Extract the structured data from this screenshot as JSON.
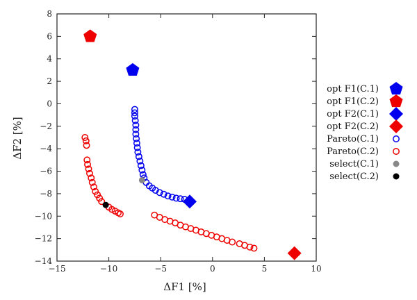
{
  "chart_data": {
    "type": "scatter",
    "xlabel": "ΔF1 [%]",
    "ylabel": "ΔF2 [%]",
    "xlim": [
      -15,
      10
    ],
    "ylim": [
      -14,
      8
    ],
    "x_ticks": [
      -15,
      -10,
      -5,
      0,
      5,
      10
    ],
    "y_ticks": [
      -14,
      -12,
      -10,
      -8,
      -6,
      -4,
      -2,
      0,
      2,
      4,
      6,
      8
    ],
    "grid": false,
    "legend_position": "right",
    "series": [
      {
        "name": "opt F1(C.1)",
        "marker": "pentagon",
        "color": "#0000ee",
        "points": [
          [
            -7.7,
            3.0
          ]
        ]
      },
      {
        "name": "opt F1(C.2)",
        "marker": "pentagon",
        "color": "#ee0000",
        "points": [
          [
            -11.8,
            6.0
          ]
        ]
      },
      {
        "name": "opt F2(C.1)",
        "marker": "diamond",
        "color": "#0000ee",
        "points": [
          [
            -2.2,
            -8.7
          ]
        ]
      },
      {
        "name": "opt F2(C.2)",
        "marker": "diamond",
        "color": "#ee0000",
        "points": [
          [
            7.9,
            -13.3
          ]
        ]
      },
      {
        "name": "Pareto(C.1)",
        "marker": "open-circle",
        "color": "#0000ee",
        "points": [
          [
            -7.5,
            -0.5
          ],
          [
            -7.5,
            -0.8
          ],
          [
            -7.5,
            -1.1
          ],
          [
            -7.45,
            -1.5
          ],
          [
            -7.4,
            -1.9
          ],
          [
            -7.4,
            -2.3
          ],
          [
            -7.4,
            -2.7
          ],
          [
            -7.35,
            -3.1
          ],
          [
            -7.3,
            -3.5
          ],
          [
            -7.25,
            -3.9
          ],
          [
            -7.2,
            -4.3
          ],
          [
            -7.1,
            -4.7
          ],
          [
            -7.0,
            -5.1
          ],
          [
            -6.9,
            -5.5
          ],
          [
            -6.8,
            -5.9
          ],
          [
            -6.7,
            -6.3
          ],
          [
            -6.6,
            -6.6
          ],
          [
            -6.4,
            -7.0
          ],
          [
            -6.1,
            -7.3
          ],
          [
            -5.8,
            -7.5
          ],
          [
            -5.5,
            -7.7
          ],
          [
            -5.1,
            -7.9
          ],
          [
            -4.7,
            -8.05
          ],
          [
            -4.3,
            -8.2
          ],
          [
            -3.9,
            -8.3
          ],
          [
            -3.5,
            -8.4
          ],
          [
            -3.1,
            -8.45
          ],
          [
            -2.7,
            -8.5
          ]
        ]
      },
      {
        "name": "Pareto(C.2)",
        "marker": "open-circle",
        "color": "#ee0000",
        "points": [
          [
            -12.3,
            -3.0
          ],
          [
            -12.2,
            -3.3
          ],
          [
            -12.15,
            -3.7
          ],
          [
            -12.1,
            -5.0
          ],
          [
            -12.05,
            -5.4
          ],
          [
            -11.95,
            -5.8
          ],
          [
            -11.85,
            -6.2
          ],
          [
            -11.7,
            -6.6
          ],
          [
            -11.6,
            -7.0
          ],
          [
            -11.45,
            -7.4
          ],
          [
            -11.3,
            -7.8
          ],
          [
            -11.1,
            -8.1
          ],
          [
            -10.9,
            -8.4
          ],
          [
            -10.7,
            -8.7
          ],
          [
            -10.0,
            -9.2
          ],
          [
            -9.7,
            -9.4
          ],
          [
            -9.4,
            -9.55
          ],
          [
            -9.1,
            -9.7
          ],
          [
            -8.9,
            -9.8
          ],
          [
            -5.6,
            -9.9
          ],
          [
            -5.1,
            -10.1
          ],
          [
            -4.6,
            -10.3
          ],
          [
            -4.1,
            -10.45
          ],
          [
            -3.6,
            -10.6
          ],
          [
            -3.1,
            -10.8
          ],
          [
            -2.6,
            -10.95
          ],
          [
            -2.1,
            -11.1
          ],
          [
            -1.6,
            -11.25
          ],
          [
            -1.1,
            -11.4
          ],
          [
            -0.6,
            -11.55
          ],
          [
            -0.1,
            -11.7
          ],
          [
            0.4,
            -11.85
          ],
          [
            0.9,
            -12.0
          ],
          [
            1.4,
            -12.15
          ],
          [
            1.9,
            -12.3
          ],
          [
            2.6,
            -12.45
          ],
          [
            3.1,
            -12.6
          ],
          [
            3.6,
            -12.75
          ],
          [
            4.0,
            -12.85
          ]
        ]
      },
      {
        "name": "select(C.1)",
        "marker": "filled-circle",
        "color": "#888888",
        "points": [
          [
            -6.8,
            -6.8
          ]
        ]
      },
      {
        "name": "select(C.2)",
        "marker": "filled-circle",
        "color": "#000000",
        "points": [
          [
            -10.3,
            -9.0
          ]
        ]
      }
    ]
  }
}
